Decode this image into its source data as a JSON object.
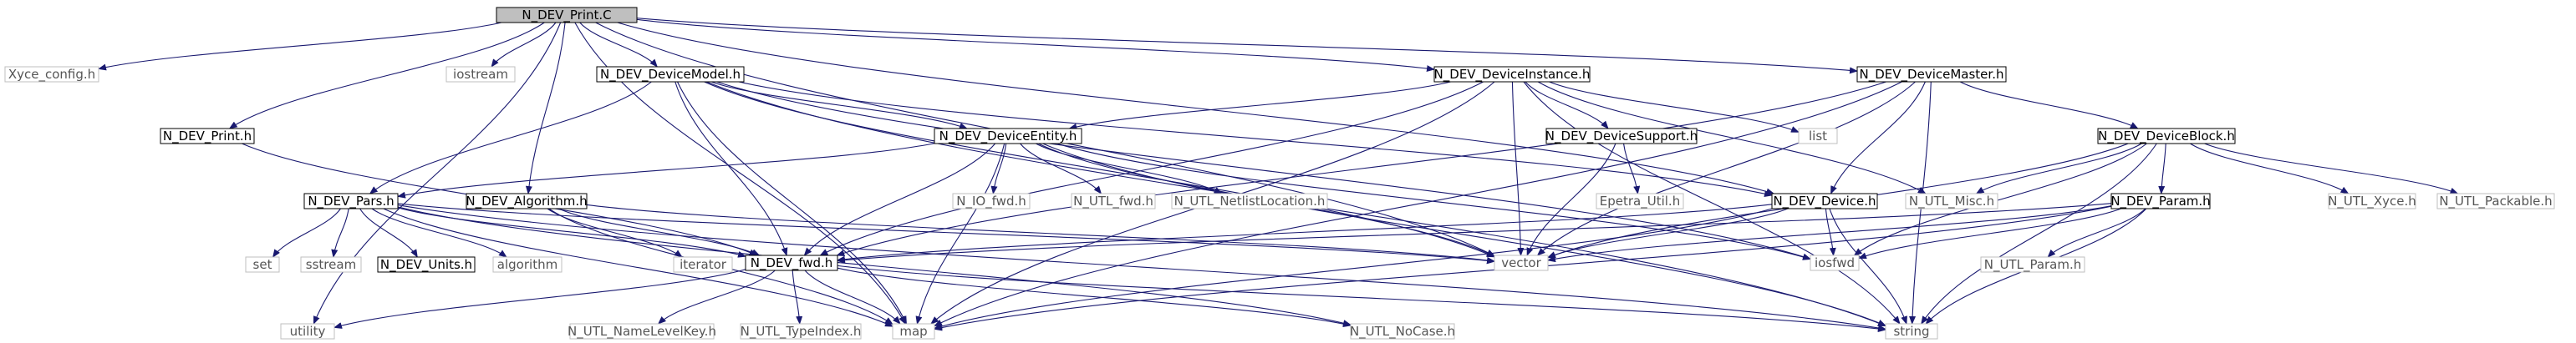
{
  "diagram": {
    "nodes": [
      {
        "id": "print_c",
        "label": "N_DEV_Print.C",
        "style": "root"
      },
      {
        "id": "xyce_config",
        "label": "Xyce_config.h",
        "style": "grey"
      },
      {
        "id": "print_h",
        "label": "N_DEV_Print.h",
        "style": "black"
      },
      {
        "id": "iostream",
        "label": "iostream",
        "style": "grey"
      },
      {
        "id": "devicemodel",
        "label": "N_DEV_DeviceModel.h",
        "style": "black"
      },
      {
        "id": "deviceinstance",
        "label": "N_DEV_DeviceInstance.h",
        "style": "black"
      },
      {
        "id": "devicemaster",
        "label": "N_DEV_DeviceMaster.h",
        "style": "black"
      },
      {
        "id": "deviceentity",
        "label": "N_DEV_DeviceEntity.h",
        "style": "black"
      },
      {
        "id": "list",
        "label": "list",
        "style": "grey"
      },
      {
        "id": "devicesupport",
        "label": "N_DEV_DeviceSupport.h",
        "style": "black"
      },
      {
        "id": "deviceblock",
        "label": "N_DEV_DeviceBlock.h",
        "style": "black"
      },
      {
        "id": "pars",
        "label": "N_DEV_Pars.h",
        "style": "black"
      },
      {
        "id": "algorithm_h",
        "label": "N_DEV_Algorithm.h",
        "style": "black"
      },
      {
        "id": "io_fwd",
        "label": "N_IO_fwd.h",
        "style": "grey"
      },
      {
        "id": "utl_fwd",
        "label": "N_UTL_fwd.h",
        "style": "grey"
      },
      {
        "id": "netlistloc",
        "label": "N_UTL_NetlistLocation.h",
        "style": "grey"
      },
      {
        "id": "epetra",
        "label": "Epetra_Util.h",
        "style": "grey"
      },
      {
        "id": "device_h",
        "label": "N_DEV_Device.h",
        "style": "black"
      },
      {
        "id": "utl_misc",
        "label": "N_UTL_Misc.h",
        "style": "grey"
      },
      {
        "id": "param",
        "label": "N_DEV_Param.h",
        "style": "black"
      },
      {
        "id": "utl_xyce",
        "label": "N_UTL_Xyce.h",
        "style": "grey"
      },
      {
        "id": "utl_packable",
        "label": "N_UTL_Packable.h",
        "style": "grey"
      },
      {
        "id": "set",
        "label": "set",
        "style": "grey"
      },
      {
        "id": "sstream",
        "label": "sstream",
        "style": "grey"
      },
      {
        "id": "units",
        "label": "N_DEV_Units.h",
        "style": "black"
      },
      {
        "id": "algorithm",
        "label": "algorithm",
        "style": "grey"
      },
      {
        "id": "iterator",
        "label": "iterator",
        "style": "grey"
      },
      {
        "id": "dev_fwd",
        "label": "N_DEV_fwd.h",
        "style": "black"
      },
      {
        "id": "vector",
        "label": "vector",
        "style": "grey"
      },
      {
        "id": "iosfwd",
        "label": "iosfwd",
        "style": "grey"
      },
      {
        "id": "utl_param",
        "label": "N_UTL_Param.h",
        "style": "grey"
      },
      {
        "id": "utility",
        "label": "utility",
        "style": "grey"
      },
      {
        "id": "namelevelkey",
        "label": "N_UTL_NameLevelKey.h",
        "style": "grey"
      },
      {
        "id": "typeindex",
        "label": "N_UTL_TypeIndex.h",
        "style": "grey"
      },
      {
        "id": "map",
        "label": "map",
        "style": "grey"
      },
      {
        "id": "nocase",
        "label": "N_UTL_NoCase.h",
        "style": "grey"
      },
      {
        "id": "string",
        "label": "string",
        "style": "grey"
      }
    ],
    "edges": [
      [
        "print_c",
        "xyce_config"
      ],
      [
        "print_c",
        "print_h"
      ],
      [
        "print_c",
        "iostream"
      ],
      [
        "print_c",
        "devicemodel"
      ],
      [
        "print_c",
        "deviceinstance"
      ],
      [
        "print_c",
        "devicemaster"
      ],
      [
        "print_c",
        "algorithm_h"
      ],
      [
        "print_c",
        "device_h"
      ],
      [
        "print_c",
        "vector"
      ],
      [
        "print_c",
        "utility"
      ],
      [
        "print_c",
        "map"
      ],
      [
        "print_h",
        "dev_fwd"
      ],
      [
        "devicemodel",
        "deviceentity"
      ],
      [
        "devicemodel",
        "pars"
      ],
      [
        "devicemodel",
        "dev_fwd"
      ],
      [
        "devicemodel",
        "vector"
      ],
      [
        "devicemodel",
        "iosfwd"
      ],
      [
        "devicemodel",
        "map"
      ],
      [
        "devicemodel",
        "string"
      ],
      [
        "devicemodel",
        "device_h"
      ],
      [
        "deviceinstance",
        "deviceentity"
      ],
      [
        "deviceinstance",
        "list"
      ],
      [
        "deviceinstance",
        "devicesupport"
      ],
      [
        "deviceinstance",
        "vector"
      ],
      [
        "deviceinstance",
        "dev_fwd"
      ],
      [
        "deviceinstance",
        "map"
      ],
      [
        "deviceinstance",
        "utl_misc"
      ],
      [
        "deviceinstance",
        "string"
      ],
      [
        "devicemaster",
        "deviceblock"
      ],
      [
        "devicemaster",
        "device_h"
      ],
      [
        "devicemaster",
        "dev_fwd"
      ],
      [
        "devicemaster",
        "vector"
      ],
      [
        "devicemaster",
        "map"
      ],
      [
        "devicemaster",
        "string"
      ],
      [
        "deviceentity",
        "pars"
      ],
      [
        "deviceentity",
        "io_fwd"
      ],
      [
        "deviceentity",
        "utl_fwd"
      ],
      [
        "deviceentity",
        "netlistloc"
      ],
      [
        "deviceentity",
        "dev_fwd"
      ],
      [
        "deviceentity",
        "vector"
      ],
      [
        "deviceentity",
        "iosfwd"
      ],
      [
        "deviceentity",
        "map"
      ],
      [
        "deviceentity",
        "string"
      ],
      [
        "devicesupport",
        "epetra"
      ],
      [
        "devicesupport",
        "vector"
      ],
      [
        "deviceblock",
        "param"
      ],
      [
        "deviceblock",
        "utl_misc"
      ],
      [
        "deviceblock",
        "utl_xyce"
      ],
      [
        "deviceblock",
        "utl_packable"
      ],
      [
        "deviceblock",
        "vector"
      ],
      [
        "deviceblock",
        "iosfwd"
      ],
      [
        "deviceblock",
        "string"
      ],
      [
        "pars",
        "set"
      ],
      [
        "pars",
        "sstream"
      ],
      [
        "pars",
        "units"
      ],
      [
        "pars",
        "algorithm"
      ],
      [
        "pars",
        "dev_fwd"
      ],
      [
        "pars",
        "map"
      ],
      [
        "pars",
        "vector"
      ],
      [
        "pars",
        "string"
      ],
      [
        "pars",
        "nocase"
      ],
      [
        "algorithm_h",
        "iterator"
      ],
      [
        "algorithm_h",
        "dev_fwd"
      ],
      [
        "algorithm_h",
        "vector"
      ],
      [
        "algorithm_h",
        "map"
      ],
      [
        "device_h",
        "dev_fwd"
      ],
      [
        "device_h",
        "vector"
      ],
      [
        "device_h",
        "iosfwd"
      ],
      [
        "device_h",
        "map"
      ],
      [
        "device_h",
        "string"
      ],
      [
        "param",
        "utl_param"
      ],
      [
        "param",
        "dev_fwd"
      ],
      [
        "param",
        "vector"
      ],
      [
        "param",
        "iosfwd"
      ],
      [
        "param",
        "map"
      ],
      [
        "param",
        "string"
      ],
      [
        "dev_fwd",
        "utility"
      ],
      [
        "dev_fwd",
        "namelevelkey"
      ],
      [
        "dev_fwd",
        "typeindex"
      ],
      [
        "dev_fwd",
        "map"
      ],
      [
        "dev_fwd",
        "nocase"
      ],
      [
        "dev_fwd",
        "string"
      ]
    ],
    "colors": {
      "root_fill": "#bfbfbf",
      "box_border": "#000000",
      "grey_border": "#bfbfbf",
      "edge": "#191970",
      "text": "#000000",
      "grey_text": "#555555"
    }
  }
}
